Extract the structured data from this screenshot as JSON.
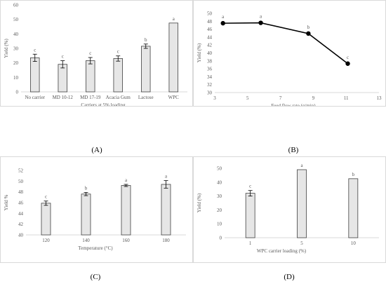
{
  "colors": {
    "bar_fill": "#e6e6e6",
    "bar_stroke": "#404040",
    "axis": "#d9d9d9",
    "text": "#595959",
    "line": "#000000"
  },
  "panel_labels": {
    "a": "(A)",
    "b": "(B)",
    "c": "(C)",
    "d": "(D)"
  },
  "chart_data": [
    {
      "type": "bar",
      "panel": "A",
      "categories": [
        "No carrier",
        "MD 10-12",
        "MD 17-19",
        "Acacia Gum",
        "Lactose",
        "WPC"
      ],
      "values": [
        23.5,
        19,
        21.5,
        23,
        31.5,
        47.5
      ],
      "errors": [
        2.5,
        2.5,
        2.2,
        1.8,
        1.5,
        0
      ],
      "letters": [
        "c",
        "c",
        "c",
        "c",
        "b",
        "a"
      ],
      "ylabel": "Yield (%)",
      "xlabel": "Carriers at 5% loading",
      "ylim": [
        0,
        60
      ],
      "yticks": [
        0,
        10,
        20,
        30,
        40,
        50,
        60
      ]
    },
    {
      "type": "line",
      "panel": "B",
      "x": [
        3.5,
        5.8,
        8.7,
        11.1
      ],
      "values": [
        47.5,
        47.6,
        44.9,
        37.3
      ],
      "errors": [
        0.4,
        0.3,
        0.3,
        0.3
      ],
      "letters": [
        "a",
        "a",
        "b",
        "c"
      ],
      "ylabel": "Yield (%)",
      "xlabel": "Feed flow rate (g/min)",
      "xlim": [
        3,
        13
      ],
      "ylim": [
        30,
        50
      ],
      "xticks": [
        3,
        5,
        7,
        9,
        11,
        13
      ],
      "yticks": [
        30,
        32,
        34,
        36,
        38,
        40,
        42,
        44,
        46,
        48,
        50
      ]
    },
    {
      "type": "bar",
      "panel": "C",
      "categories": [
        "120",
        "140",
        "160",
        "180"
      ],
      "values": [
        45.9,
        47.6,
        49.2,
        49.4
      ],
      "errors": [
        0.4,
        0.3,
        0.2,
        0.7
      ],
      "letters": [
        "c",
        "b",
        "a",
        "a"
      ],
      "ylabel": "Yield %",
      "xlabel": "Temperature (°C)",
      "ylim": [
        40,
        52
      ],
      "yticks": [
        40,
        42,
        44,
        46,
        48,
        50,
        52
      ]
    },
    {
      "type": "bar",
      "panel": "D",
      "categories": [
        "1",
        "5",
        "10"
      ],
      "values": [
        32,
        49,
        42.5
      ],
      "errors": [
        2,
        0,
        0
      ],
      "letters": [
        "c",
        "a",
        "b"
      ],
      "ylabel": "Yield (%)",
      "xlabel": "WPC carrier loading (%)",
      "ylim": [
        0,
        50
      ],
      "yticks": [
        0,
        10,
        20,
        30,
        40,
        50
      ]
    }
  ]
}
